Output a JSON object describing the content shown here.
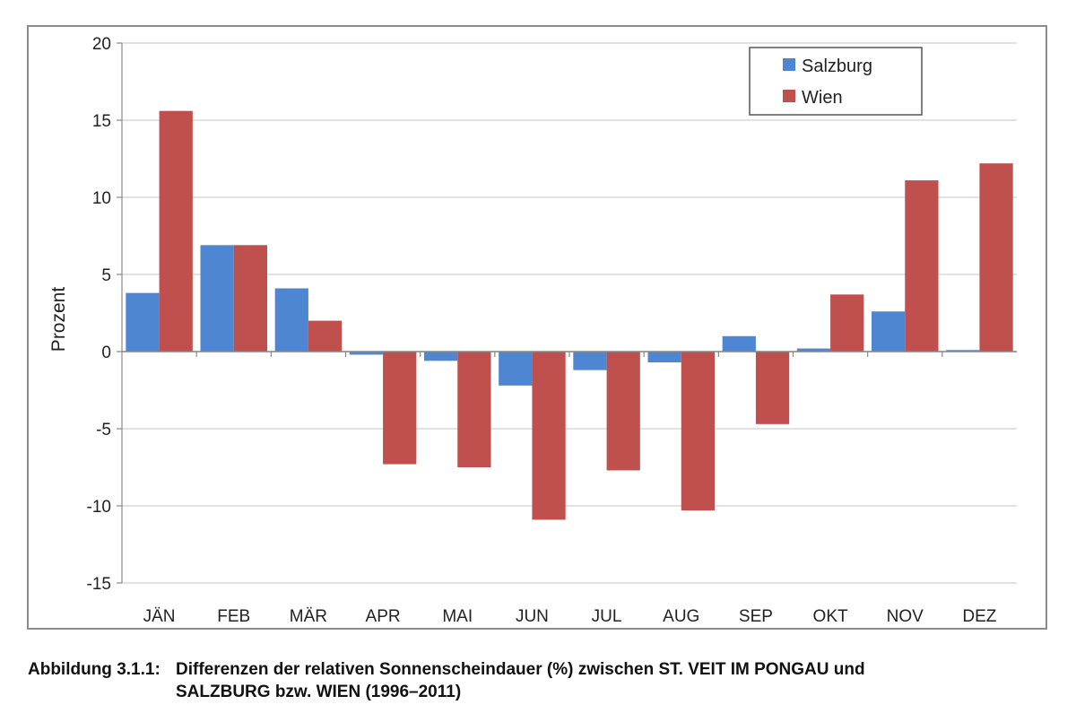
{
  "chart_data": {
    "type": "bar",
    "categories": [
      "JÄN",
      "FEB",
      "MÄR",
      "APR",
      "MAI",
      "JUN",
      "JUL",
      "AUG",
      "SEP",
      "OKT",
      "NOV",
      "DEZ"
    ],
    "series": [
      {
        "name": "Salzburg",
        "color": "#4f86d1",
        "values": [
          3.8,
          6.9,
          4.1,
          -0.2,
          -0.6,
          -2.2,
          -1.2,
          -0.7,
          1.0,
          0.2,
          2.6,
          0.1
        ]
      },
      {
        "name": "Wien",
        "color": "#c0504d",
        "values": [
          15.6,
          6.9,
          2.0,
          -7.3,
          -7.5,
          -10.9,
          -7.7,
          -10.3,
          -4.7,
          3.7,
          11.1,
          12.2
        ]
      }
    ],
    "ylabel": "Prozent",
    "ylim": [
      -15,
      20
    ],
    "yticks": [
      20,
      15,
      10,
      5,
      0,
      -5,
      -10,
      -15
    ],
    "grid": true,
    "legend_position": "top-right"
  },
  "caption": {
    "label": "Abbildung 3.1.1:",
    "line1": "Differenzen der relativen Sonnenscheindauer (%) zwischen ST. VEIT IM PONGAU und",
    "line2": "SALZBURG bzw. WIEN (1996–2011)"
  }
}
